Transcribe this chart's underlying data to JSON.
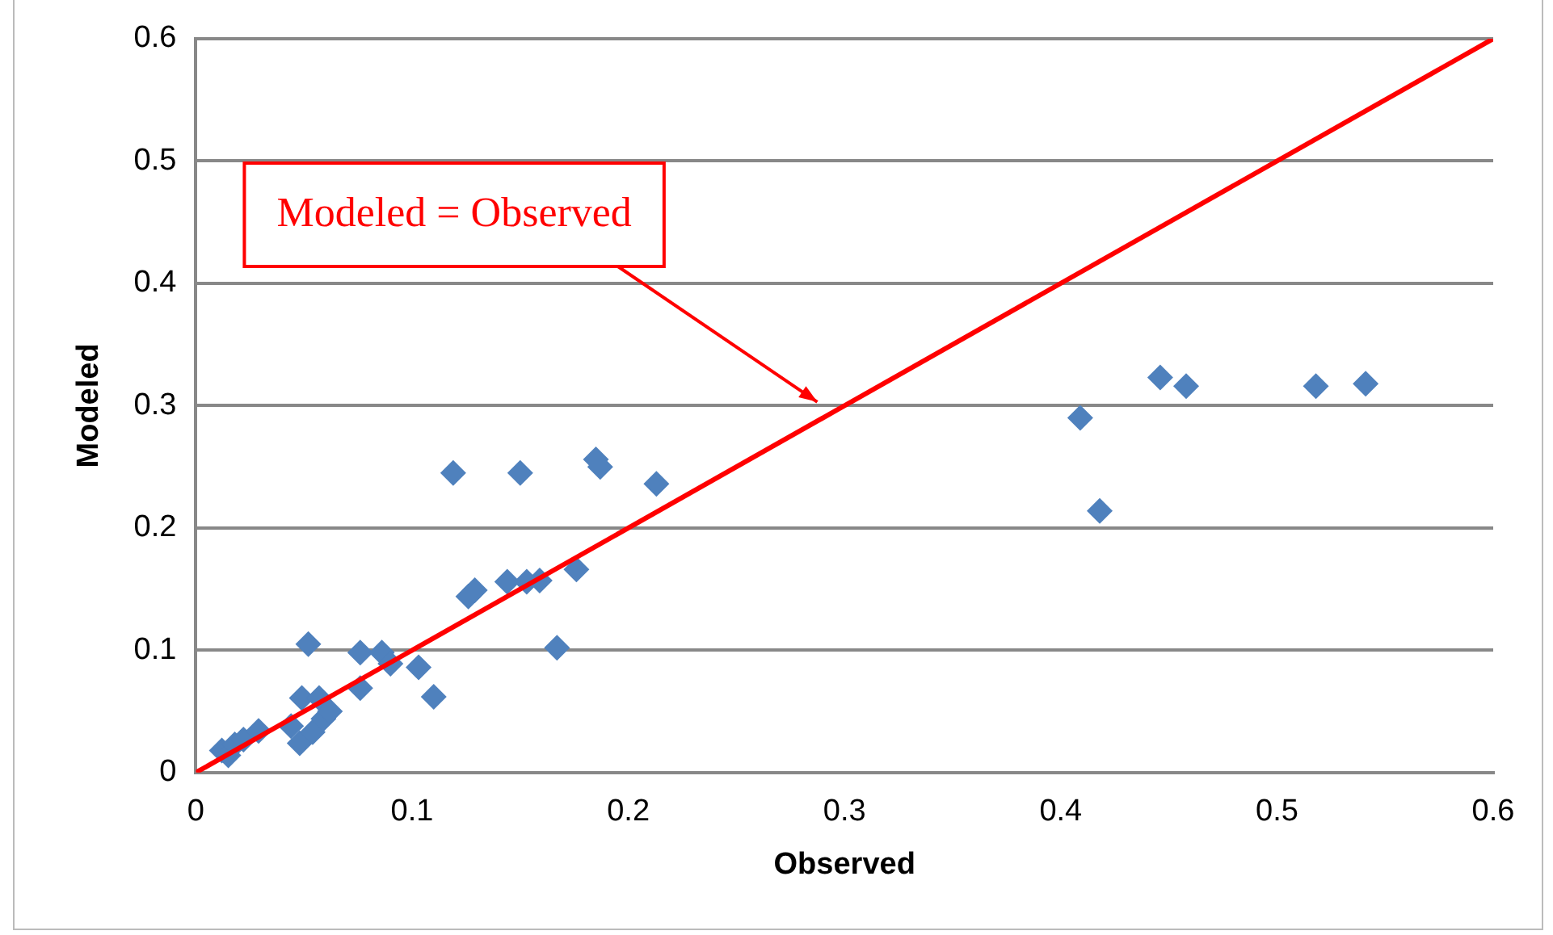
{
  "chart_data": {
    "type": "scatter",
    "xlabel": "Observed",
    "ylabel": "Modeled",
    "xlim": [
      0,
      0.6
    ],
    "xticks": [
      0,
      0.1,
      0.2,
      0.3,
      0.4,
      0.5,
      0.6
    ],
    "ylim": [
      0,
      0.6
    ],
    "yticks": [
      0,
      0.1,
      0.2,
      0.3,
      0.4,
      0.5,
      0.6
    ],
    "grid": "y",
    "legend": false,
    "marker": "diamond",
    "annotations": [
      "Modeled = Observed"
    ],
    "series": [
      {
        "color": "#4f81bd",
        "x": [
          0.012,
          0.015,
          0.018,
          0.022,
          0.029,
          0.044,
          0.048,
          0.049,
          0.052,
          0.054,
          0.057,
          0.059,
          0.062,
          0.076,
          0.076,
          0.086,
          0.09,
          0.103,
          0.11,
          0.119,
          0.126,
          0.129,
          0.144,
          0.15,
          0.153,
          0.159,
          0.167,
          0.176,
          0.185,
          0.187,
          0.213,
          0.409,
          0.418,
          0.446,
          0.458,
          0.518,
          0.541
        ],
        "values": [
          0.018,
          0.014,
          0.023,
          0.027,
          0.034,
          0.038,
          0.024,
          0.061,
          0.105,
          0.033,
          0.061,
          0.044,
          0.05,
          0.098,
          0.069,
          0.098,
          0.089,
          0.086,
          0.062,
          0.245,
          0.144,
          0.149,
          0.156,
          0.245,
          0.156,
          0.157,
          0.102,
          0.166,
          0.256,
          0.25,
          0.236,
          0.29,
          0.214,
          0.323,
          0.316,
          0.316,
          0.318
        ]
      },
      {
        "type": "line",
        "color": "#ff0000",
        "x": [
          0,
          0.6
        ],
        "values": [
          0,
          0.6
        ],
        "marker": "none",
        "line_style": "solid"
      }
    ]
  }
}
